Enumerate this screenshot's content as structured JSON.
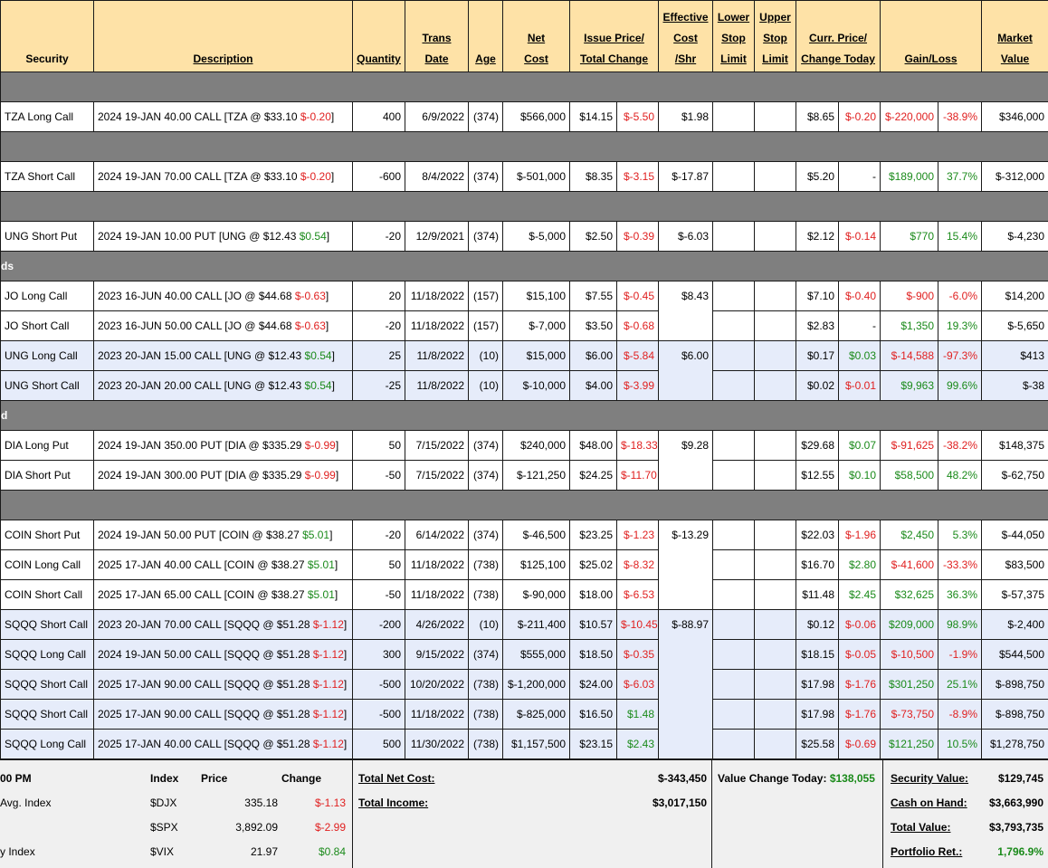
{
  "headers": {
    "security": "Security",
    "description": "Description",
    "quantity": "Quantity",
    "trans1": "Trans",
    "trans2": "Date",
    "age": "Age",
    "net1": "Net",
    "net2": "Cost",
    "issue1": "Issue Price/",
    "issue2": "Total Change",
    "eff1": "Effective",
    "eff2": "Cost",
    "eff3": "/Shr",
    "lower1": "Lower",
    "lower2": "Stop",
    "lower3": "Limit",
    "upper1": "Upper",
    "upper2": "Stop",
    "upper3": "Limit",
    "curr1": "Curr. Price/",
    "curr2": "Change Today",
    "gain": "Gain/Loss",
    "market1": "Market",
    "market2": "Value"
  },
  "sections": [
    "",
    "",
    "",
    "ds",
    "d",
    ""
  ],
  "rows": {
    "r0": {
      "security": "TZA Long Call",
      "desc": "2024 19-JAN 40.00 CALL [TZA @ $33.10 ",
      "dchg": "$-0.20",
      "dtail": "]",
      "qty": "400",
      "date": "6/9/2022",
      "age": "(374)",
      "net": "$566,000",
      "issue": "$14.15",
      "tchg": "$-5.50",
      "eff": "$1.98",
      "curr": "$8.65",
      "today": "$-0.20",
      "gl": "$-220,000",
      "pct": "-38.9%",
      "mv": "$346,000"
    },
    "r1": {
      "security": "TZA Short Call",
      "desc": "2024 19-JAN 70.00 CALL [TZA @ $33.10 ",
      "dchg": "$-0.20",
      "dtail": "]",
      "qty": "-600",
      "date": "8/4/2022",
      "age": "(374)",
      "net": "$-501,000",
      "issue": "$8.35",
      "tchg": "$-3.15",
      "eff": "$-17.87",
      "curr": "$5.20",
      "today": "-",
      "gl": "$189,000",
      "pct": "37.7%",
      "mv": "$-312,000"
    },
    "r2": {
      "security": "UNG Short Put",
      "desc": "2024 19-JAN 10.00 PUT [UNG @ $12.43 ",
      "dchg": "$0.54",
      "dtail": "]",
      "qty": "-20",
      "date": "12/9/2021",
      "age": "(374)",
      "net": "$-5,000",
      "issue": "$2.50",
      "tchg": "$-0.39",
      "eff": "$-6.03",
      "curr": "$2.12",
      "today": "$-0.14",
      "gl": "$770",
      "pct": "15.4%",
      "mv": "$-4,230"
    },
    "r3": {
      "security": "JO Long Call",
      "desc": "2023 16-JUN 40.00 CALL [JO @ $44.68 ",
      "dchg": "$-0.63",
      "dtail": "]",
      "qty": "20",
      "date": "11/18/2022",
      "age": "(157)",
      "net": "$15,100",
      "issue": "$7.55",
      "tchg": "$-0.45",
      "eff": "$8.43",
      "curr": "$7.10",
      "today": "$-0.40",
      "gl": "$-900",
      "pct": "-6.0%",
      "mv": "$14,200"
    },
    "r4": {
      "security": "JO Short Call",
      "desc": "2023 16-JUN 50.00 CALL [JO @ $44.68 ",
      "dchg": "$-0.63",
      "dtail": "]",
      "qty": "-20",
      "date": "11/18/2022",
      "age": "(157)",
      "net": "$-7,000",
      "issue": "$3.50",
      "tchg": "$-0.68",
      "eff": "",
      "curr": "$2.83",
      "today": "-",
      "gl": "$1,350",
      "pct": "19.3%",
      "mv": "$-5,650"
    },
    "r5": {
      "security": "UNG Long Call",
      "desc": "2023 20-JAN 15.00 CALL [UNG @ $12.43 ",
      "dchg": "$0.54",
      "dtail": "]",
      "qty": "25",
      "date": "11/8/2022",
      "age": "(10)",
      "net": "$15,000",
      "issue": "$6.00",
      "tchg": "$-5.84",
      "eff": "$6.00",
      "curr": "$0.17",
      "today": "$0.03",
      "gl": "$-14,588",
      "pct": "-97.3%",
      "mv": "$413"
    },
    "r6": {
      "security": "UNG Short Call",
      "desc": "2023 20-JAN 20.00 CALL [UNG @ $12.43 ",
      "dchg": "$0.54",
      "dtail": "]",
      "qty": "-25",
      "date": "11/8/2022",
      "age": "(10)",
      "net": "$-10,000",
      "issue": "$4.00",
      "tchg": "$-3.99",
      "eff": "",
      "curr": "$0.02",
      "today": "$-0.01",
      "gl": "$9,963",
      "pct": "99.6%",
      "mv": "$-38"
    },
    "r7": {
      "security": "DIA Long Put",
      "desc": "2024 19-JAN 350.00 PUT [DIA @ $335.29 ",
      "dchg": "$-0.99",
      "dtail": "]",
      "qty": "50",
      "date": "7/15/2022",
      "age": "(374)",
      "net": "$240,000",
      "issue": "$48.00",
      "tchg": "$-18.33",
      "eff": "$9.28",
      "curr": "$29.68",
      "today": "$0.07",
      "gl": "$-91,625",
      "pct": "-38.2%",
      "mv": "$148,375"
    },
    "r8": {
      "security": "DIA Short Put",
      "desc": "2024 19-JAN 300.00 PUT [DIA @ $335.29 ",
      "dchg": "$-0.99",
      "dtail": "]",
      "qty": "-50",
      "date": "7/15/2022",
      "age": "(374)",
      "net": "$-121,250",
      "issue": "$24.25",
      "tchg": "$-11.70",
      "eff": "",
      "curr": "$12.55",
      "today": "$0.10",
      "gl": "$58,500",
      "pct": "48.2%",
      "mv": "$-62,750"
    },
    "r9": {
      "security": "COIN Short Put",
      "desc": "2024 19-JAN 50.00 PUT [COIN @ $38.27 ",
      "dchg": "$5.01",
      "dtail": "]",
      "qty": "-20",
      "date": "6/14/2022",
      "age": "(374)",
      "net": "$-46,500",
      "issue": "$23.25",
      "tchg": "$-1.23",
      "eff": "$-13.29",
      "curr": "$22.03",
      "today": "$-1.96",
      "gl": "$2,450",
      "pct": "5.3%",
      "mv": "$-44,050"
    },
    "r10": {
      "security": "COIN Long Call",
      "desc": "2025 17-JAN 40.00 CALL [COIN @ $38.27 ",
      "dchg": "$5.01",
      "dtail": "]",
      "qty": "50",
      "date": "11/18/2022",
      "age": "(738)",
      "net": "$125,100",
      "issue": "$25.02",
      "tchg": "$-8.32",
      "eff": "",
      "curr": "$16.70",
      "today": "$2.80",
      "gl": "$-41,600",
      "pct": "-33.3%",
      "mv": "$83,500"
    },
    "r11": {
      "security": "COIN Short Call",
      "desc": "2025 17-JAN 65.00 CALL [COIN @ $38.27 ",
      "dchg": "$5.01",
      "dtail": "]",
      "qty": "-50",
      "date": "11/18/2022",
      "age": "(738)",
      "net": "$-90,000",
      "issue": "$18.00",
      "tchg": "$-6.53",
      "eff": "",
      "curr": "$11.48",
      "today": "$2.45",
      "gl": "$32,625",
      "pct": "36.3%",
      "mv": "$-57,375"
    },
    "r12": {
      "security": "SQQQ Short Call",
      "desc": "2023 20-JAN 70.00 CALL [SQQQ @ $51.28 ",
      "dchg": "$-1.12",
      "dtail": "]",
      "qty": "-200",
      "date": "4/26/2022",
      "age": "(10)",
      "net": "$-211,400",
      "issue": "$10.57",
      "tchg": "$-10.45",
      "eff": "$-88.97",
      "curr": "$0.12",
      "today": "$-0.06",
      "gl": "$209,000",
      "pct": "98.9%",
      "mv": "$-2,400"
    },
    "r13": {
      "security": "SQQQ Long Call",
      "desc": "2024 19-JAN 50.00 CALL [SQQQ @ $51.28 ",
      "dchg": "$-1.12",
      "dtail": "]",
      "qty": "300",
      "date": "9/15/2022",
      "age": "(374)",
      "net": "$555,000",
      "issue": "$18.50",
      "tchg": "$-0.35",
      "eff": "",
      "curr": "$18.15",
      "today": "$-0.05",
      "gl": "$-10,500",
      "pct": "-1.9%",
      "mv": "$544,500"
    },
    "r14": {
      "security": "SQQQ Short Call",
      "desc": "2025 17-JAN 90.00 CALL [SQQQ @ $51.28 ",
      "dchg": "$-1.12",
      "dtail": "]",
      "qty": "-500",
      "date": "10/20/2022",
      "age": "(738)",
      "net": "$-1,200,000",
      "issue": "$24.00",
      "tchg": "$-6.03",
      "eff": "",
      "curr": "$17.98",
      "today": "$-1.76",
      "gl": "$301,250",
      "pct": "25.1%",
      "mv": "$-898,750"
    },
    "r15": {
      "security": "SQQQ Short Call",
      "desc": "2025 17-JAN 90.00 CALL [SQQQ @ $51.28 ",
      "dchg": "$-1.12",
      "dtail": "]",
      "qty": "-500",
      "date": "11/18/2022",
      "age": "(738)",
      "net": "$-825,000",
      "issue": "$16.50",
      "tchg": "$1.48",
      "eff": "",
      "curr": "$17.98",
      "today": "$-1.76",
      "gl": "$-73,750",
      "pct": "-8.9%",
      "mv": "$-898,750"
    },
    "r16": {
      "security": "SQQQ Long Call",
      "desc": "2025 17-JAN 40.00 CALL [SQQQ @ $51.28 ",
      "dchg": "$-1.12",
      "dtail": "]",
      "qty": "500",
      "date": "11/30/2022",
      "age": "(738)",
      "net": "$1,157,500",
      "issue": "$23.15",
      "tchg": "$2.43",
      "eff": "",
      "curr": "$25.58",
      "today": "$-0.69",
      "gl": "$121,250",
      "pct": "10.5%",
      "mv": "$1,278,750"
    }
  },
  "footer": {
    "time_label": "00 PM",
    "index_header": "Index",
    "price_header": "Price",
    "change_header": "Change",
    "indices": [
      {
        "name": "Avg. Index",
        "sym": "$DJX",
        "price": "335.18",
        "chg": "$-1.13"
      },
      {
        "name": "",
        "sym": "$SPX",
        "price": "3,892.09",
        "chg": "$-2.99"
      },
      {
        "name": "y Index",
        "sym": "$VIX",
        "price": "21.97",
        "chg": "$0.84"
      }
    ],
    "total_net_cost_label": "Total Net Cost:",
    "total_net_cost": "$-343,450",
    "total_income_label": "Total Income:",
    "total_income": "$3,017,150",
    "value_change_label": "Value Change Today:",
    "value_change": "$138,055",
    "security_value_label": "Security Value:",
    "security_value": "$129,745",
    "cash_label": "Cash on Hand:",
    "cash": "$3,663,990",
    "total_value_label": "Total Value:",
    "total_value": "$3,793,735",
    "portfolio_ret_label": "Portfolio Ret.:",
    "portfolio_ret": "1,796.9%"
  },
  "colors": {
    "header_bg": "#fee2a7",
    "section_bg": "#7f7f7f",
    "highlight_row_bg": "#e6ecfa",
    "negative": "#e02020",
    "positive": "#1a8a1a"
  }
}
